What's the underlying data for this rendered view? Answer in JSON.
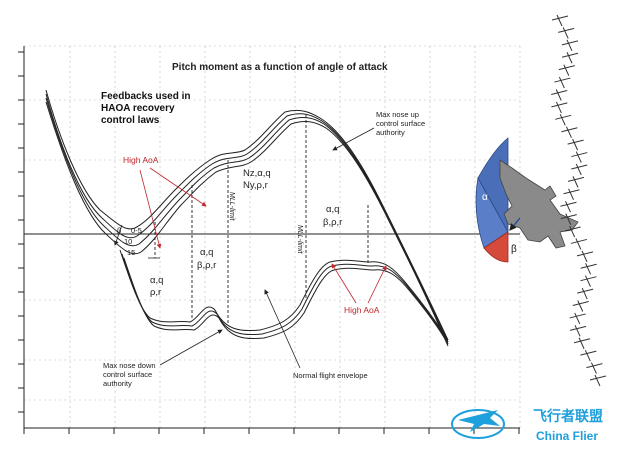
{
  "title": "Pitch moment as a function of angle of attack",
  "feedbacks_heading": [
    "Feedbacks used in",
    "HAOA recovery",
    "control laws"
  ],
  "labels": {
    "high_aoa_left": "High AoA",
    "high_aoa_right": "High AoA",
    "max_nose_up": [
      "Max nose up",
      "control surface",
      "authority"
    ],
    "max_nose_down": [
      "Max nose down",
      "control surface",
      "authority"
    ],
    "normal_flight_envelope": "Normal flight envelope",
    "mll_limit_1": "MLL-limit",
    "mll_limit_2": "MLL-limit",
    "fb_left": [
      "α,q",
      "ρ,r"
    ],
    "fb_mid": [
      "α,q",
      "β,ρ,r"
    ],
    "fb_center": [
      "Nz,α,q",
      "Ny,ρ,r"
    ],
    "fb_right": [
      "α,q",
      "β,ρ,r"
    ],
    "range_labels": [
      "0-5",
      "10",
      "15"
    ],
    "beta_symbol": "β"
  },
  "inset": {
    "alpha_symbol": "α",
    "beta_symbol": "β"
  },
  "watermark": {
    "text_cn": "飞行者联盟",
    "text_en": "China Flier"
  },
  "colors": {
    "red_label": "#c0282c",
    "alpha_sector": "#4a6fb8",
    "beta_sector": "#d64a3a",
    "logo": "#1ea0dc"
  }
}
